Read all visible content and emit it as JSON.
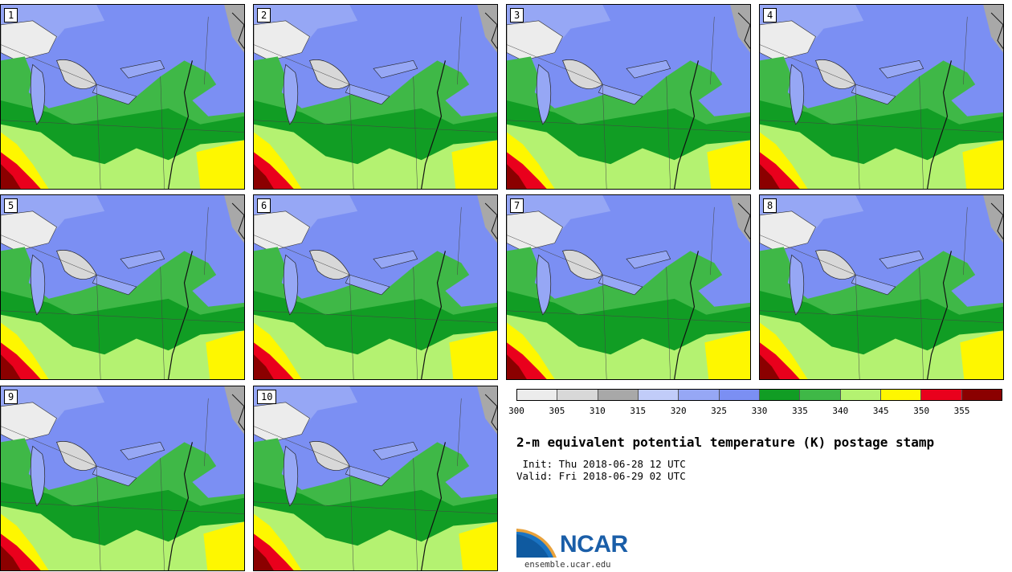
{
  "panels": [
    {
      "label": "1"
    },
    {
      "label": "2"
    },
    {
      "label": "3"
    },
    {
      "label": "4"
    },
    {
      "label": "5"
    },
    {
      "label": "6"
    },
    {
      "label": "7"
    },
    {
      "label": "8"
    },
    {
      "label": "9"
    },
    {
      "label": "10"
    }
  ],
  "colorbar": {
    "ticks": [
      "300",
      "305",
      "310",
      "315",
      "320",
      "325",
      "330",
      "335",
      "340",
      "345",
      "350",
      "355"
    ],
    "colors": [
      "#ececec",
      "#d8d8d8",
      "#a8a8a8",
      "#c1ccf9",
      "#96a7f5",
      "#7b8ff3",
      "#119d24",
      "#3fb847",
      "#b4f271",
      "#fef700",
      "#e9001c",
      "#8b0000"
    ]
  },
  "title": "2-m equivalent potential temperature (K) postage stamp",
  "init": " Init: Thu 2018-06-28 12 UTC",
  "valid": "Valid: Fri 2018-06-29 02 UTC",
  "logo": {
    "name": "NCAR",
    "url": "ensemble.ucar.edu"
  }
}
